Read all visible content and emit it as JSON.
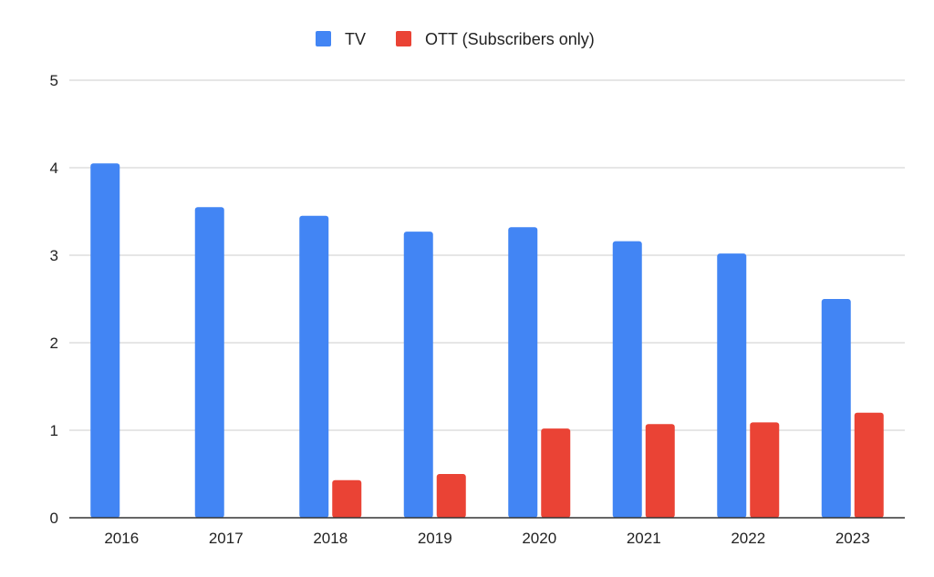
{
  "chart_data": {
    "type": "bar",
    "title": "",
    "xlabel": "",
    "ylabel": "",
    "categories": [
      "2016",
      "2017",
      "2018",
      "2019",
      "2020",
      "2021",
      "2022",
      "2023"
    ],
    "series": [
      {
        "name": "TV",
        "color": "#4285F4",
        "values": [
          4.05,
          3.55,
          3.45,
          3.27,
          3.32,
          3.16,
          3.02,
          2.5
        ]
      },
      {
        "name": "OTT (Subscribers only)",
        "color": "#EA4335",
        "values": [
          null,
          null,
          0.43,
          0.5,
          1.02,
          1.07,
          1.09,
          1.2
        ]
      }
    ],
    "ylim": [
      0,
      5
    ],
    "yticks": [
      "0",
      "1",
      "2",
      "3",
      "4",
      "5"
    ],
    "grid": true,
    "legend": "top-center"
  }
}
